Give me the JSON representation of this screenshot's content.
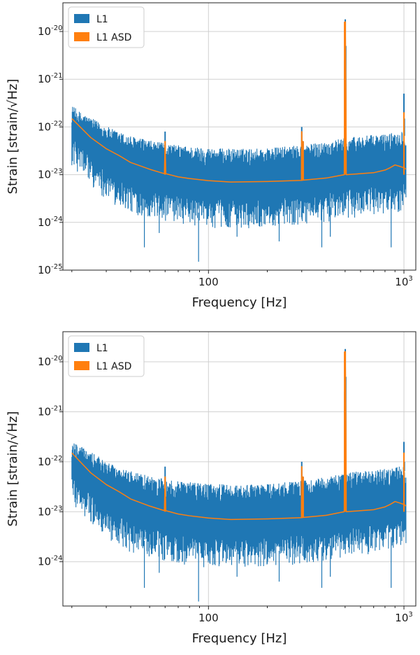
{
  "chart_data": [
    {
      "type": "line",
      "xscale": "log",
      "yscale": "log",
      "xlabel": "Frequency [Hz]",
      "ylabel": "Strain [strain/√Hz]",
      "xlim": [
        18,
        1150
      ],
      "ylim": [
        1e-25,
        4e-20
      ],
      "xticks": [
        {
          "value": 100,
          "label": "100",
          "exp": ""
        },
        {
          "value": 1000,
          "label": "10",
          "exp": "3"
        }
      ],
      "yticks": [
        {
          "value": 1e-25,
          "label": "10",
          "exp": "-25"
        },
        {
          "value": 1e-24,
          "label": "10",
          "exp": "-24"
        },
        {
          "value": 1e-23,
          "label": "10",
          "exp": "-23"
        },
        {
          "value": 1e-22,
          "label": "10",
          "exp": "-22"
        },
        {
          "value": 1e-21,
          "label": "10",
          "exp": "-21"
        },
        {
          "value": 1e-20,
          "label": "10",
          "exp": "-20"
        }
      ],
      "grid": true,
      "legend": {
        "position": "top-left",
        "entries": [
          "L1",
          "L1 ASD"
        ]
      },
      "series": [
        {
          "name": "L1",
          "color": "#1f77b4",
          "envelope": {
            "x": [
              20,
              22,
              25,
              30,
              35,
              40,
              50,
              60,
              70,
              80,
              100,
              130,
              160,
              200,
              250,
              300,
              350,
              400,
              450,
              500,
              550,
              600,
              700,
              800,
              900,
              1000,
              1024
            ],
            "upper": [
              2.2e-22,
              1.6e-22,
              1.2e-22,
              8e-23,
              6e-23,
              5e-23,
              4e-23,
              3.5e-23,
              3.2e-23,
              3e-23,
              2.8e-23,
              2.7e-23,
              2.7e-23,
              2.8e-23,
              3e-23,
              3.2e-23,
              3.5e-23,
              3.8e-23,
              4.2e-23,
              4.5e-23,
              4.8e-23,
              5e-23,
              5.2e-23,
              5.5e-23,
              6e-23,
              6.5e-23,
              6.5e-23
            ],
            "lower": [
              3e-23,
              2e-23,
              1.2e-23,
              6e-24,
              4e-24,
              3e-24,
              2.5e-24,
              2e-24,
              1.8e-24,
              1.7e-24,
              1.5e-24,
              1.5e-24,
              1.5e-24,
              1.6e-24,
              1.7e-24,
              1.8e-24,
              1.9e-24,
              2e-24,
              2.2e-24,
              2.3e-24,
              2.5e-24,
              2.6e-24,
              2.8e-24,
              3e-24,
              3.2e-24,
              3.5e-24,
              3.5e-24
            ]
          },
          "dips": [
            {
              "x": 47,
              "y": 3e-25
            },
            {
              "x": 56,
              "y": 6e-25
            },
            {
              "x": 89,
              "y": 1.5e-25
            },
            {
              "x": 140,
              "y": 5e-25
            },
            {
              "x": 230,
              "y": 4e-25
            },
            {
              "x": 380,
              "y": 3e-25
            },
            {
              "x": 420,
              "y": 5e-25
            },
            {
              "x": 860,
              "y": 3e-25
            }
          ],
          "spikes": [
            {
              "x": 60,
              "y": 8e-23
            },
            {
              "x": 300,
              "y": 1e-22
            },
            {
              "x": 305,
              "y": 5e-23
            },
            {
              "x": 497,
              "y": 2.5e-21
            },
            {
              "x": 501,
              "y": 1.8e-20
            },
            {
              "x": 504,
              "y": 5e-21
            },
            {
              "x": 1000,
              "y": 5e-22
            },
            {
              "x": 1005,
              "y": 1.5e-22
            }
          ]
        },
        {
          "name": "L1 ASD",
          "color": "#ff7f0e",
          "x": [
            20,
            25,
            30,
            35,
            40,
            50,
            59.5,
            60,
            60.5,
            70,
            80,
            100,
            130,
            200,
            299,
            300,
            301,
            304,
            305,
            306,
            400,
            495,
            497,
            499,
            501,
            503,
            505,
            507,
            600,
            700,
            800,
            850,
            900,
            950,
            998,
            1000,
            1002,
            1024
          ],
          "y": [
            1.5e-22,
            6e-23,
            3.5e-23,
            2.5e-23,
            1.8e-23,
            1.3e-23,
            1.05e-23,
            5e-23,
            1.05e-23,
            9e-24,
            8.3e-24,
            7.5e-24,
            7e-24,
            7.2e-24,
            7.6e-24,
            8e-23,
            7.6e-24,
            7.7e-24,
            5e-23,
            7.7e-24,
            8.5e-24,
            1e-23,
            2e-21,
            1.5e-20,
            1.6e-20,
            3e-21,
            5e-22,
            1e-23,
            1.05e-23,
            1.1e-23,
            1.25e-23,
            1.4e-23,
            1.6e-23,
            1.5e-23,
            1.4e-23,
            2e-22,
            1.4e-23,
            1.3e-23
          ]
        }
      ]
    },
    {
      "type": "line",
      "xscale": "log",
      "yscale": "log",
      "xlabel": "Frequency [Hz]",
      "ylabel": "Strain [strain/√Hz]",
      "xlim": [
        18,
        1150
      ],
      "ylim": [
        1.3e-25,
        4e-20
      ],
      "xticks": [
        {
          "value": 100,
          "label": "100",
          "exp": ""
        },
        {
          "value": 1000,
          "label": "10",
          "exp": "3"
        }
      ],
      "yticks": [
        {
          "value": 1e-24,
          "label": "10",
          "exp": "-24"
        },
        {
          "value": 1e-23,
          "label": "10",
          "exp": "-23"
        },
        {
          "value": 1e-22,
          "label": "10",
          "exp": "-22"
        },
        {
          "value": 1e-21,
          "label": "10",
          "exp": "-21"
        },
        {
          "value": 1e-20,
          "label": "10",
          "exp": "-20"
        }
      ],
      "grid": true,
      "legend": {
        "position": "top-left",
        "entries": [
          "L1",
          "L1 ASD"
        ]
      },
      "series": [
        {
          "name": "L1",
          "color": "#1f77b4",
          "envelope": {
            "x": [
              20,
              22,
              25,
              30,
              35,
              40,
              50,
              60,
              70,
              80,
              100,
              130,
              160,
              200,
              250,
              300,
              350,
              400,
              450,
              500,
              550,
              600,
              700,
              800,
              900,
              1000,
              1024
            ],
            "upper": [
              2.2e-22,
              1.6e-22,
              1.2e-22,
              8e-23,
              6e-23,
              5e-23,
              4e-23,
              3.5e-23,
              3.2e-23,
              3e-23,
              2.8e-23,
              2.7e-23,
              2.7e-23,
              2.8e-23,
              3e-23,
              3.2e-23,
              3.5e-23,
              3.8e-23,
              4.2e-23,
              4.5e-23,
              4.8e-23,
              5e-23,
              5.2e-23,
              5.5e-23,
              6e-23,
              6.5e-23,
              6.5e-23
            ],
            "lower": [
              3e-23,
              2e-23,
              1.2e-23,
              6e-24,
              4e-24,
              3e-24,
              2.5e-24,
              2e-24,
              1.8e-24,
              1.7e-24,
              1.5e-24,
              1.5e-24,
              1.5e-24,
              1.6e-24,
              1.7e-24,
              1.8e-24,
              1.9e-24,
              2e-24,
              2.2e-24,
              2.3e-24,
              2.5e-24,
              2.6e-24,
              2.8e-24,
              3e-24,
              3.2e-24,
              3.5e-24,
              3.5e-24
            ]
          },
          "dips": [
            {
              "x": 47,
              "y": 3e-25
            },
            {
              "x": 56,
              "y": 6e-25
            },
            {
              "x": 89,
              "y": 1.6e-25
            },
            {
              "x": 140,
              "y": 5e-25
            },
            {
              "x": 230,
              "y": 4e-25
            },
            {
              "x": 380,
              "y": 3e-25
            },
            {
              "x": 420,
              "y": 5e-25
            },
            {
              "x": 860,
              "y": 3e-25
            }
          ],
          "spikes": [
            {
              "x": 60,
              "y": 8e-23
            },
            {
              "x": 300,
              "y": 1e-22
            },
            {
              "x": 305,
              "y": 5e-23
            },
            {
              "x": 497,
              "y": 2.5e-21
            },
            {
              "x": 501,
              "y": 1.8e-20
            },
            {
              "x": 504,
              "y": 5e-21
            },
            {
              "x": 1000,
              "y": 2.5e-22
            },
            {
              "x": 1005,
              "y": 1e-22
            }
          ]
        },
        {
          "name": "L1 ASD",
          "color": "#ff7f0e",
          "x": [
            20,
            25,
            30,
            35,
            40,
            50,
            59.5,
            60,
            60.5,
            70,
            80,
            100,
            130,
            200,
            299,
            300,
            301,
            304,
            305,
            306,
            400,
            495,
            497,
            499,
            501,
            503,
            505,
            507,
            600,
            700,
            800,
            850,
            900,
            950,
            998,
            1000,
            1002,
            1024
          ],
          "y": [
            1.5e-22,
            6e-23,
            3.5e-23,
            2.5e-23,
            1.8e-23,
            1.3e-23,
            1.05e-23,
            5e-23,
            1.05e-23,
            9e-24,
            8.3e-24,
            7.5e-24,
            7e-24,
            7.2e-24,
            7.6e-24,
            8e-23,
            7.6e-24,
            7.7e-24,
            5e-23,
            7.7e-24,
            8.5e-24,
            1e-23,
            2e-21,
            1.5e-20,
            1.6e-20,
            3e-21,
            5e-22,
            1e-23,
            1.05e-23,
            1.1e-23,
            1.25e-23,
            1.4e-23,
            1.6e-23,
            1.5e-23,
            1.4e-23,
            1.5e-22,
            1.4e-23,
            1.3e-23
          ]
        }
      ]
    }
  ]
}
